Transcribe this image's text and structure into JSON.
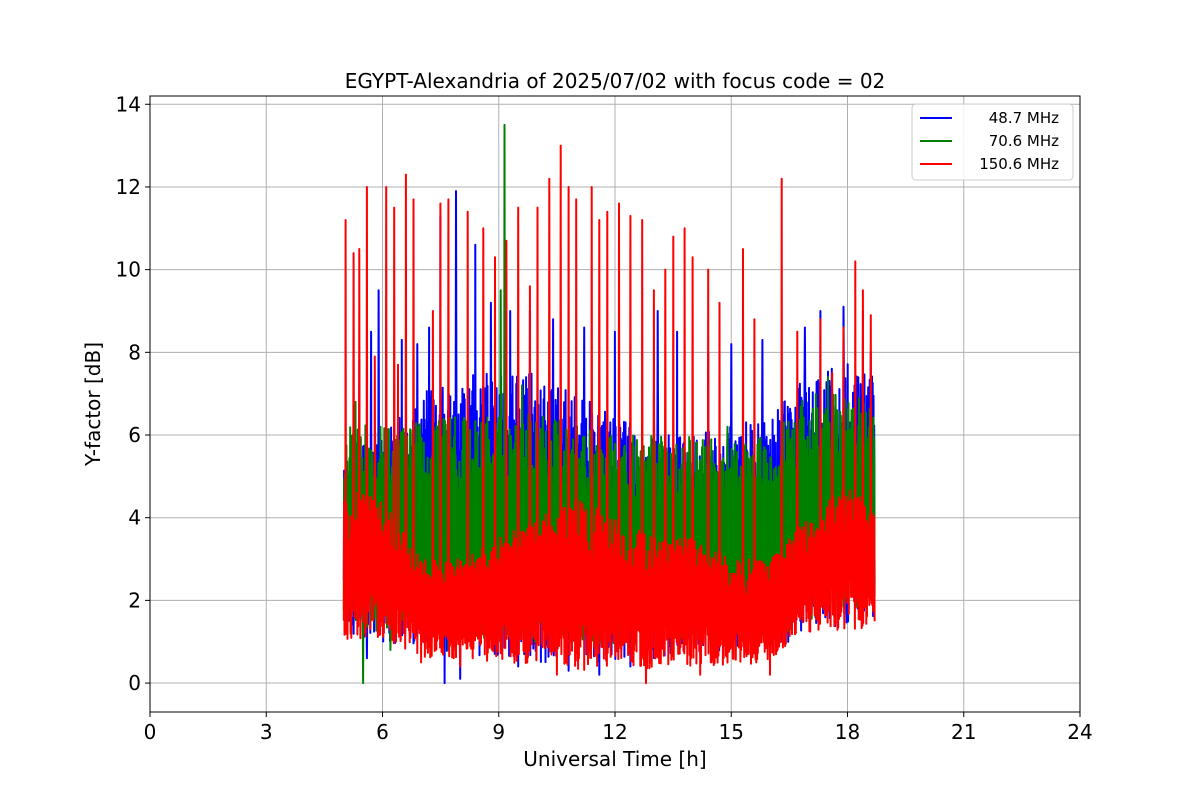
{
  "chart_data": {
    "type": "line",
    "title": "EGYPT-Alexandria of 2025/07/02 with focus code = 02",
    "xlabel": "Universal Time [h]",
    "ylabel": "Y-factor [dB]",
    "xlim": [
      0,
      24
    ],
    "ylim": [
      -0.7,
      14.2
    ],
    "xticks": [
      0,
      3,
      6,
      9,
      12,
      15,
      18,
      21,
      24
    ],
    "yticks": [
      0,
      2,
      4,
      6,
      8,
      10,
      12,
      14
    ],
    "grid": true,
    "legend_position": "top-right",
    "x_range_of_data": [
      5.0,
      18.7
    ],
    "series": [
      {
        "name": "48.7 MHz",
        "color": "#0000ff",
        "baseline_low": [
          [
            5.0,
            1.2
          ],
          [
            6.0,
            1.0
          ],
          [
            7.0,
            0.9
          ],
          [
            8.0,
            0.7
          ],
          [
            9.0,
            0.6
          ],
          [
            10.0,
            0.5
          ],
          [
            11.0,
            0.5
          ],
          [
            12.0,
            0.5
          ],
          [
            13.0,
            0.6
          ],
          [
            14.0,
            0.7
          ],
          [
            15.0,
            0.8
          ],
          [
            16.0,
            0.8
          ],
          [
            17.0,
            1.2
          ],
          [
            18.0,
            1.4
          ],
          [
            18.7,
            1.5
          ]
        ],
        "baseline_high": [
          [
            5.0,
            5.5
          ],
          [
            6.0,
            6.0
          ],
          [
            7.0,
            7.0
          ],
          [
            8.0,
            7.5
          ],
          [
            9.0,
            7.5
          ],
          [
            10.0,
            7.5
          ],
          [
            11.0,
            7.0
          ],
          [
            12.0,
            6.5
          ],
          [
            13.0,
            6.0
          ],
          [
            14.0,
            6.0
          ],
          [
            15.0,
            6.2
          ],
          [
            16.0,
            6.5
          ],
          [
            17.0,
            7.5
          ],
          [
            18.0,
            7.8
          ],
          [
            18.7,
            7.4
          ]
        ],
        "peaks": [
          [
            5.4,
            7.8
          ],
          [
            5.7,
            8.5
          ],
          [
            5.9,
            9.5
          ],
          [
            6.5,
            8.3
          ],
          [
            6.9,
            8.2
          ],
          [
            7.2,
            8.6
          ],
          [
            7.5,
            11.3
          ],
          [
            7.9,
            11.9
          ],
          [
            8.4,
            10.6
          ],
          [
            8.8,
            9.2
          ],
          [
            9.3,
            9.0
          ],
          [
            9.8,
            9.0
          ],
          [
            10.4,
            8.8
          ],
          [
            11.2,
            8.6
          ],
          [
            12.0,
            8.5
          ],
          [
            13.1,
            9.0
          ],
          [
            13.6,
            8.5
          ],
          [
            14.4,
            8.0
          ],
          [
            15.0,
            8.2
          ],
          [
            15.8,
            8.3
          ],
          [
            16.3,
            7.8
          ],
          [
            16.9,
            8.6
          ],
          [
            17.3,
            9.0
          ],
          [
            17.9,
            9.1
          ],
          [
            18.4,
            9.0
          ],
          [
            18.6,
            8.0
          ]
        ],
        "dips": [
          [
            5.6,
            0.6
          ],
          [
            7.6,
            0.0
          ],
          [
            8.0,
            0.1
          ],
          [
            9.5,
            0.4
          ],
          [
            10.8,
            0.3
          ],
          [
            11.6,
            0.2
          ],
          [
            12.4,
            0.4
          ]
        ]
      },
      {
        "name": "70.6 MHz",
        "color": "#008000",
        "baseline_low": [
          [
            5.0,
            1.5
          ],
          [
            6.0,
            1.2
          ],
          [
            7.0,
            1.4
          ],
          [
            8.0,
            1.2
          ],
          [
            9.0,
            1.0
          ],
          [
            10.0,
            0.9
          ],
          [
            11.0,
            0.9
          ],
          [
            12.0,
            0.8
          ],
          [
            13.0,
            0.8
          ],
          [
            14.0,
            1.0
          ],
          [
            15.0,
            1.0
          ],
          [
            16.0,
            1.0
          ],
          [
            17.0,
            1.5
          ],
          [
            18.0,
            1.8
          ],
          [
            18.7,
            1.8
          ]
        ],
        "baseline_high": [
          [
            5.0,
            6.2
          ],
          [
            6.0,
            6.3
          ],
          [
            7.0,
            6.3
          ],
          [
            8.0,
            6.5
          ],
          [
            9.0,
            6.5
          ],
          [
            10.0,
            6.5
          ],
          [
            11.0,
            6.3
          ],
          [
            12.0,
            6.0
          ],
          [
            13.0,
            6.0
          ],
          [
            14.0,
            6.0
          ],
          [
            15.0,
            5.8
          ],
          [
            16.0,
            6.0
          ],
          [
            17.0,
            7.0
          ],
          [
            18.0,
            7.0
          ],
          [
            18.7,
            6.8
          ]
        ],
        "peaks": [
          [
            5.3,
            6.8
          ],
          [
            7.5,
            6.5
          ],
          [
            8.6,
            6.8
          ],
          [
            9.05,
            9.5
          ],
          [
            9.15,
            13.5
          ],
          [
            9.6,
            7.2
          ],
          [
            13.0,
            7.0
          ],
          [
            14.9,
            6.2
          ],
          [
            17.5,
            7.4
          ]
        ],
        "dips": [
          [
            5.5,
            0.0
          ],
          [
            6.2,
            0.8
          ],
          [
            7.7,
            0.8
          ]
        ]
      },
      {
        "name": "150.6 MHz",
        "color": "#ff0000",
        "baseline_low": [
          [
            5.0,
            0.9
          ],
          [
            6.0,
            1.1
          ],
          [
            7.0,
            0.6
          ],
          [
            8.0,
            0.6
          ],
          [
            9.0,
            0.5
          ],
          [
            10.0,
            0.4
          ],
          [
            11.0,
            0.3
          ],
          [
            12.0,
            0.3
          ],
          [
            13.0,
            0.3
          ],
          [
            14.0,
            0.4
          ],
          [
            15.0,
            0.4
          ],
          [
            16.0,
            0.5
          ],
          [
            17.0,
            1.2
          ],
          [
            18.0,
            1.3
          ],
          [
            18.7,
            1.3
          ]
        ],
        "baseline_high": [
          [
            5.0,
            4.8
          ],
          [
            6.0,
            4.5
          ],
          [
            7.0,
            3.0
          ],
          [
            8.0,
            3.0
          ],
          [
            9.0,
            3.5
          ],
          [
            10.0,
            4.0
          ],
          [
            11.0,
            4.5
          ],
          [
            12.0,
            4.0
          ],
          [
            13.0,
            3.5
          ],
          [
            14.0,
            3.5
          ],
          [
            15.0,
            3.0
          ],
          [
            16.0,
            3.0
          ],
          [
            17.0,
            4.0
          ],
          [
            18.0,
            4.8
          ],
          [
            18.7,
            4.2
          ]
        ],
        "peaks": [
          [
            5.05,
            11.2
          ],
          [
            5.25,
            10.4
          ],
          [
            5.4,
            10.5
          ],
          [
            5.6,
            12.0
          ],
          [
            5.8,
            7.9
          ],
          [
            6.1,
            12.0
          ],
          [
            6.3,
            11.5
          ],
          [
            6.4,
            7.7
          ],
          [
            6.6,
            12.3
          ],
          [
            6.8,
            11.7
          ],
          [
            7.0,
            10.2
          ],
          [
            7.3,
            9.0
          ],
          [
            7.5,
            11.6
          ],
          [
            7.7,
            11.7
          ],
          [
            8.2,
            11.4
          ],
          [
            8.6,
            11.0
          ],
          [
            8.9,
            10.3
          ],
          [
            9.2,
            10.7
          ],
          [
            9.5,
            11.5
          ],
          [
            9.8,
            9.6
          ],
          [
            10.0,
            11.5
          ],
          [
            10.3,
            12.2
          ],
          [
            10.6,
            13.0
          ],
          [
            10.8,
            12.0
          ],
          [
            11.0,
            11.7
          ],
          [
            11.4,
            12.0
          ],
          [
            11.6,
            11.2
          ],
          [
            11.8,
            11.4
          ],
          [
            12.1,
            11.6
          ],
          [
            12.4,
            11.3
          ],
          [
            12.7,
            11.2
          ],
          [
            13.0,
            9.5
          ],
          [
            13.3,
            10.0
          ],
          [
            13.5,
            10.8
          ],
          [
            13.8,
            11.0
          ],
          [
            14.0,
            10.3
          ],
          [
            14.4,
            10.0
          ],
          [
            14.7,
            9.2
          ],
          [
            15.3,
            10.5
          ],
          [
            15.6,
            8.8
          ],
          [
            16.3,
            12.2
          ],
          [
            16.7,
            8.5
          ],
          [
            17.3,
            8.8
          ],
          [
            17.6,
            7.5
          ],
          [
            17.9,
            8.6
          ],
          [
            18.2,
            10.2
          ],
          [
            18.4,
            9.5
          ],
          [
            18.6,
            8.9
          ]
        ],
        "dips": [
          [
            7.0,
            0.5
          ],
          [
            8.0,
            0.4
          ],
          [
            10.5,
            0.2
          ],
          [
            12.8,
            0.0
          ],
          [
            14.2,
            0.2
          ],
          [
            16.0,
            0.2
          ]
        ]
      }
    ]
  }
}
